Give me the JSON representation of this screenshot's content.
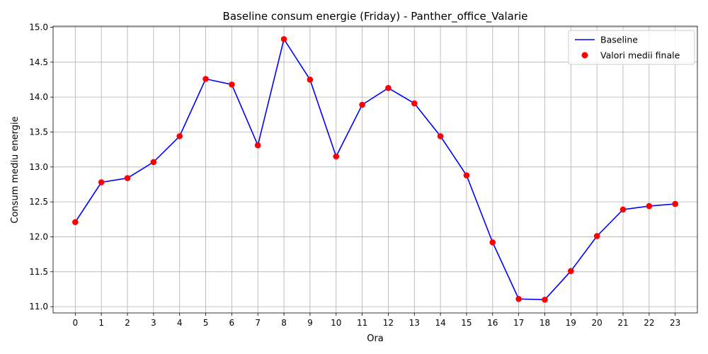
{
  "chart_data": {
    "type": "line",
    "title": "Baseline consum energie (Friday) - Panther_office_Valarie",
    "xlabel": "Ora",
    "ylabel": "Consum mediu energie",
    "x": [
      0,
      1,
      2,
      3,
      4,
      5,
      6,
      7,
      8,
      9,
      10,
      11,
      12,
      13,
      14,
      15,
      16,
      17,
      18,
      19,
      20,
      21,
      22,
      23
    ],
    "xlim": [
      -0.85,
      23.85
    ],
    "ylim": [
      10.91,
      15.015
    ],
    "yticks": [
      11.0,
      11.5,
      12.0,
      12.5,
      13.0,
      13.5,
      14.0,
      14.5,
      15.0
    ],
    "ytick_labels": [
      "11.0",
      "11.5",
      "12.0",
      "12.5",
      "13.0",
      "13.5",
      "14.0",
      "14.5",
      "15.0"
    ],
    "grid": true,
    "legend_position": "top-right",
    "series": [
      {
        "name": "Baseline",
        "kind": "line",
        "color": "#0000ff",
        "values": [
          12.21,
          12.78,
          12.84,
          13.07,
          13.44,
          14.26,
          14.18,
          13.31,
          14.83,
          14.25,
          13.15,
          13.89,
          14.13,
          13.91,
          13.44,
          12.88,
          11.92,
          11.11,
          11.1,
          11.51,
          12.01,
          12.39,
          12.44,
          12.47
        ]
      },
      {
        "name": "Valori medii finale",
        "kind": "scatter",
        "color": "#ff0000",
        "values": [
          12.21,
          12.78,
          12.84,
          13.07,
          13.44,
          14.26,
          14.18,
          13.31,
          14.83,
          14.25,
          13.15,
          13.89,
          14.13,
          13.91,
          13.44,
          12.88,
          11.92,
          11.11,
          11.1,
          11.51,
          12.01,
          12.39,
          12.44,
          12.47
        ]
      }
    ]
  }
}
